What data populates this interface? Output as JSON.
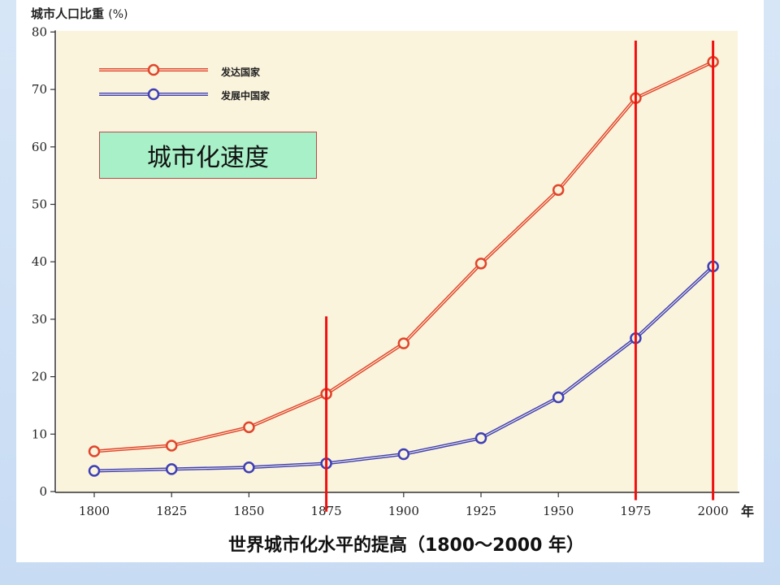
{
  "chart_data": {
    "type": "line",
    "ylabel": "城市人口比重",
    "ylabel_unit": "(%)",
    "x_unit": "年",
    "bottom_title": "世界城市化水平的提高（1800～2000 年）",
    "annotation": "城市化速度",
    "x": [
      1800,
      1825,
      1850,
      1875,
      1900,
      1925,
      1950,
      1975,
      2000
    ],
    "x_tick_labels": [
      "1800",
      "1825",
      "1850",
      "1875",
      "1900",
      "1925",
      "1950",
      "1975",
      "2000"
    ],
    "ylim": [
      0,
      80
    ],
    "y_ticks": [
      0,
      10,
      20,
      30,
      40,
      50,
      60,
      70,
      80
    ],
    "legend_position": "top-left",
    "series": [
      {
        "name": "发达国家",
        "color": "#e0452b",
        "values": [
          7,
          8,
          11.2,
          17,
          25.8,
          39.7,
          52.5,
          68.5,
          74.8
        ]
      },
      {
        "name": "发展中国家",
        "color": "#3f3fb5",
        "values": [
          3.6,
          3.9,
          4.2,
          4.9,
          6.5,
          9.3,
          16.4,
          26.7,
          39.2
        ]
      }
    ],
    "vertical_markers": [
      {
        "x": 1875,
        "from": 30.5,
        "to": -3.5
      },
      {
        "x": 1975,
        "from": 78.5,
        "to": -1.5
      },
      {
        "x": 2000,
        "from": 78.5,
        "to": -1.5
      }
    ],
    "marker_color": "#ee1111"
  }
}
